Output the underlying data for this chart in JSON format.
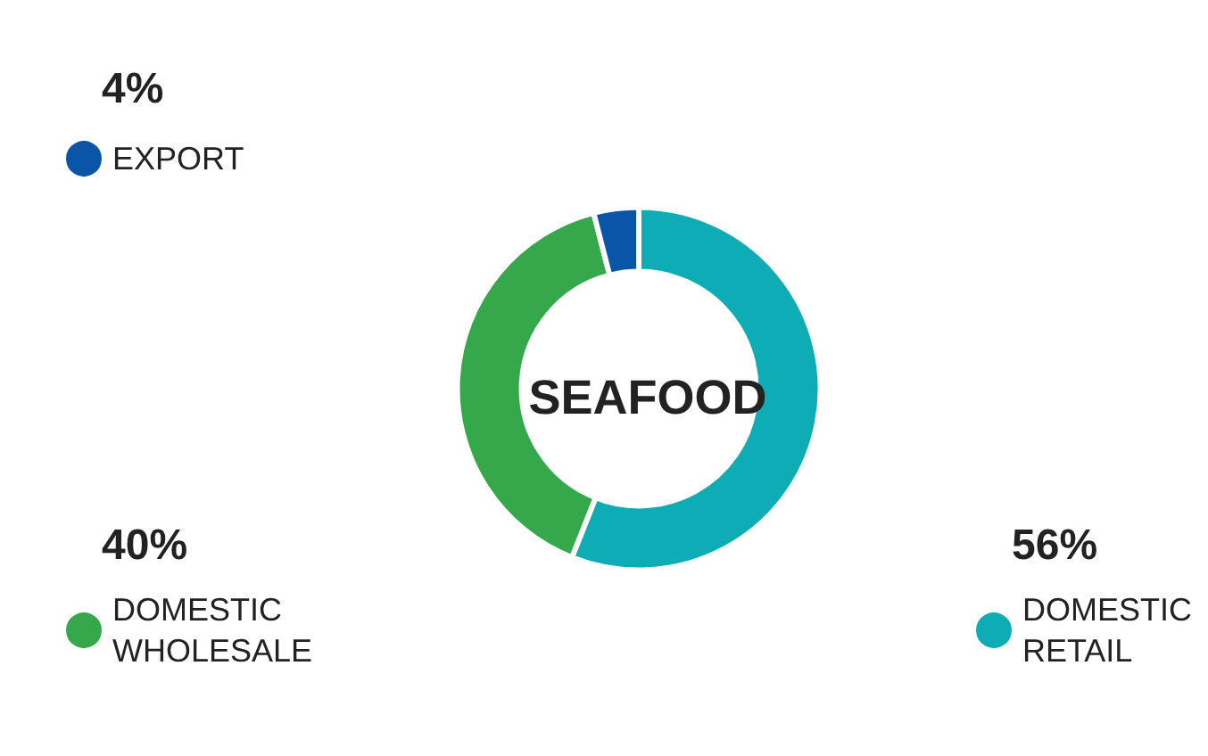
{
  "chart_data": {
    "type": "donut",
    "title": "SEAFOOD",
    "categories": [
      "DOMESTIC RETAIL",
      "DOMESTIC WHOLESALE",
      "EXPORT"
    ],
    "values": [
      56,
      40,
      4
    ],
    "colors": [
      "#0eacb4",
      "#34a84a",
      "#0b55a8"
    ],
    "value_labels": [
      "56%",
      "40%",
      "4%"
    ],
    "legend": "left"
  }
}
